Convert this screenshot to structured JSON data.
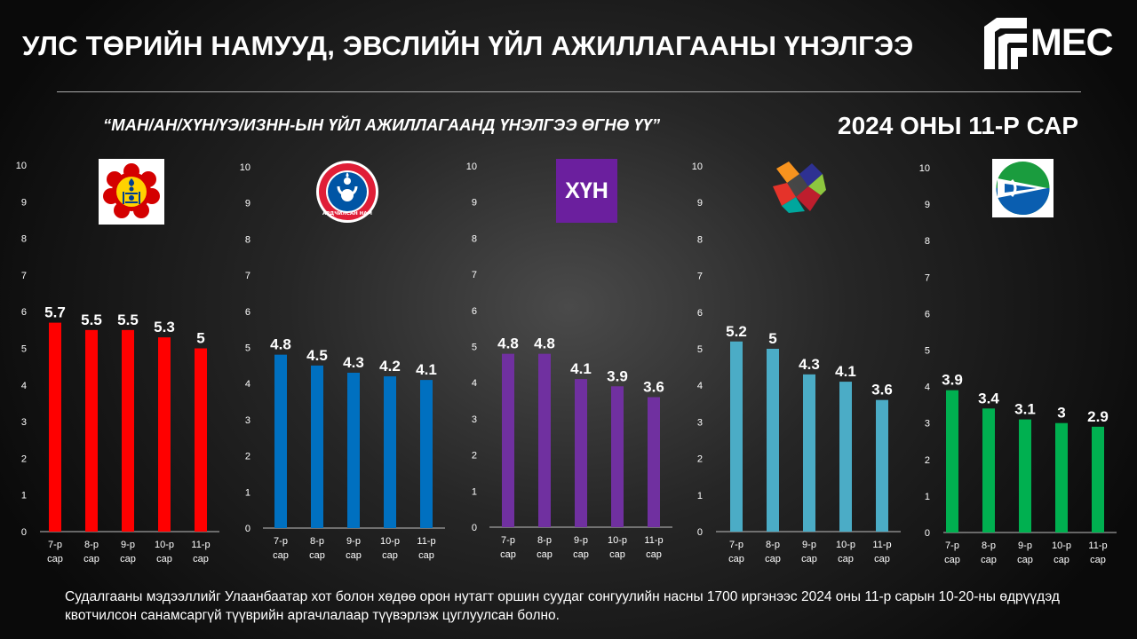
{
  "header": {
    "title": "УЛС ТӨРИЙН НАМУУД, ЭВСЛИЙН ҮЙЛ АЖИЛЛАГААНЫ ҮНЭЛГЭЭ",
    "brand": "MEC",
    "subtitle": "“МАН/АН/ХҮН/ҮЭ/ИЗНН-ЫН ҮЙЛ АЖИЛЛАГААНД ҮНЭЛГЭЭ ӨГНӨ ҮҮ”",
    "period": "2024 ОНЫ 11-Р САР"
  },
  "logos": {
    "xun_text": "ХҮН",
    "ah_ring_text": "АРДЧИЛСАН НАМ"
  },
  "chart_data": [
    {
      "type": "bar",
      "categories": [
        [
          "7-р",
          "сар"
        ],
        [
          "8-р",
          "сар"
        ],
        [
          "9-р",
          "сар"
        ],
        [
          "10-р",
          "сар"
        ],
        [
          "11-р",
          "сар"
        ]
      ],
      "values": [
        5.7,
        5.5,
        5.5,
        5.3,
        5
      ],
      "color": "#ff0000",
      "ylim": [
        0,
        10
      ],
      "yticks": [
        0,
        1,
        2,
        3,
        4,
        5,
        6,
        7,
        8,
        9,
        10
      ],
      "grid": false,
      "logo_icon": "mah-soyombo-emblem-icon"
    },
    {
      "type": "bar",
      "categories": [
        [
          "7-р",
          "сар"
        ],
        [
          "8-р",
          "сар"
        ],
        [
          "9-р",
          "сар"
        ],
        [
          "10-р",
          "сар"
        ],
        [
          "11-р",
          "сар"
        ]
      ],
      "values": [
        4.8,
        4.5,
        4.3,
        4.2,
        4.1
      ],
      "color": "#0070c0",
      "ylim": [
        0,
        10
      ],
      "yticks": [
        0,
        1,
        2,
        3,
        4,
        5,
        6,
        7,
        8,
        9,
        10
      ],
      "grid": false,
      "logo_icon": "ah-circle-emblem-icon"
    },
    {
      "type": "bar",
      "categories": [
        [
          "7-р",
          "сар"
        ],
        [
          "8-р",
          "сар"
        ],
        [
          "9-р",
          "сар"
        ],
        [
          "10-р",
          "сар"
        ],
        [
          "11-р",
          "сар"
        ]
      ],
      "values": [
        4.8,
        4.8,
        4.1,
        3.9,
        3.6
      ],
      "color": "#7030a0",
      "ylim": [
        0,
        10
      ],
      "yticks": [
        0,
        1,
        2,
        3,
        4,
        5,
        6,
        7,
        8,
        9,
        10
      ],
      "grid": false,
      "logo_icon": "xun-text-logo-icon"
    },
    {
      "type": "bar",
      "categories": [
        [
          "7-р",
          "сар"
        ],
        [
          "8-р",
          "сар"
        ],
        [
          "9-р",
          "сар"
        ],
        [
          "10-р",
          "сар"
        ],
        [
          "11-р",
          "сар"
        ]
      ],
      "values": [
        5.2,
        5,
        4.3,
        4.1,
        3.6
      ],
      "color": "#4bacc6",
      "ylim": [
        0,
        10
      ],
      "yticks": [
        0,
        1,
        2,
        3,
        4,
        5,
        6,
        7,
        8,
        9,
        10
      ],
      "grid": false,
      "logo_icon": "ue-colorful-cross-icon"
    },
    {
      "type": "bar",
      "categories": [
        [
          "7-р",
          "сар"
        ],
        [
          "8-р",
          "сар"
        ],
        [
          "9-р",
          "сар"
        ],
        [
          "10-р",
          "сар"
        ],
        [
          "11-р",
          "сар"
        ]
      ],
      "values": [
        3.9,
        3.4,
        3.1,
        3,
        2.9
      ],
      "color": "#00b050",
      "ylim": [
        0,
        10
      ],
      "yticks": [
        0,
        1,
        2,
        3,
        4,
        5,
        6,
        7,
        8,
        9,
        10
      ],
      "grid": false,
      "logo_icon": "izn-green-globe-icon"
    }
  ],
  "footer": {
    "text": "Судалгааны мэдээллийг Улаанбаатар хот болон хөдөө орон нутагт оршин суудаг сонгуулийн насны 1700 иргэнээс 2024 оны 11-р сарын 10-20-ны өдрүүдэд квотчилсон санамсаргүй түүврийн аргачлалаар түүвэрлэж цуглуулсан болно."
  }
}
